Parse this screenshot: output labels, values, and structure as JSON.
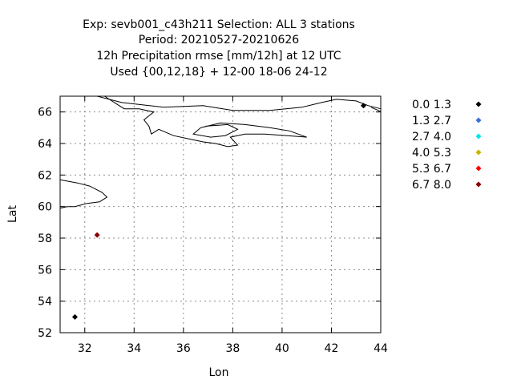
{
  "title_lines": [
    "Exp: sevb001_c43h211   Selection: ALL      3 stations",
    "Period: 20210527-20210626",
    "12h Precipitation rmse [mm/12h] at  12 UTC",
    "Used {00,12,18} + 12-00 18-06 24-12"
  ],
  "chart_data": {
    "type": "scatter",
    "xlabel": "Lon",
    "ylabel": "Lat",
    "xlim": [
      31,
      44
    ],
    "ylim": [
      52,
      67
    ],
    "xticks": [
      32,
      34,
      36,
      38,
      40,
      42,
      44
    ],
    "yticks": [
      52,
      54,
      56,
      58,
      60,
      62,
      64,
      66
    ],
    "grid": true,
    "legend_position": "right",
    "legend": [
      {
        "label": "0.0 1.3",
        "color": "#000000"
      },
      {
        "label": "1.3 2.7",
        "color": "#3b6fd6"
      },
      {
        "label": "2.7 4.0",
        "color": "#00e5e5"
      },
      {
        "label": "4.0 5.3",
        "color": "#c8b400"
      },
      {
        "label": "5.3 6.7",
        "color": "#ff0000"
      },
      {
        "label": "6.7 8.0",
        "color": "#8b0000"
      }
    ],
    "points": [
      {
        "lon": 31.6,
        "lat": 53.0,
        "class": 0
      },
      {
        "lon": 32.5,
        "lat": 58.2,
        "class": 5
      },
      {
        "lon": 43.3,
        "lat": 66.4,
        "class": 0
      }
    ],
    "coastlines": [
      [
        [
          32.5,
          67.0
        ],
        [
          33.5,
          66.6
        ],
        [
          35.2,
          66.3
        ],
        [
          36.8,
          66.4
        ],
        [
          38.0,
          66.1
        ],
        [
          39.5,
          66.1
        ],
        [
          40.8,
          66.3
        ],
        [
          41.6,
          66.6
        ],
        [
          42.2,
          66.8
        ],
        [
          43.0,
          66.7
        ],
        [
          43.5,
          66.4
        ],
        [
          44.0,
          66.2
        ]
      ],
      [
        [
          32.8,
          67.0
        ],
        [
          33.2,
          66.6
        ],
        [
          33.6,
          66.2
        ],
        [
          34.2,
          66.2
        ],
        [
          34.8,
          66.0
        ],
        [
          34.4,
          65.5
        ],
        [
          34.6,
          65.1
        ],
        [
          34.7,
          64.6
        ],
        [
          35.0,
          64.9
        ],
        [
          35.6,
          64.5
        ],
        [
          36.2,
          64.3
        ],
        [
          36.8,
          64.1
        ],
        [
          37.3,
          64.0
        ],
        [
          37.8,
          63.8
        ],
        [
          38.2,
          63.9
        ],
        [
          37.9,
          64.4
        ],
        [
          38.5,
          64.6
        ],
        [
          39.3,
          64.6
        ],
        [
          40.2,
          64.5
        ],
        [
          41.0,
          64.4
        ],
        [
          40.3,
          64.8
        ],
        [
          39.5,
          65.0
        ],
        [
          38.5,
          65.2
        ],
        [
          37.5,
          65.3
        ],
        [
          36.7,
          65.0
        ],
        [
          36.4,
          64.6
        ],
        [
          37.1,
          64.4
        ],
        [
          37.7,
          64.5
        ],
        [
          38.2,
          64.9
        ],
        [
          37.8,
          65.2
        ],
        [
          36.9,
          65.1
        ]
      ],
      [
        [
          31.0,
          61.7
        ],
        [
          31.7,
          61.5
        ],
        [
          32.2,
          61.3
        ],
        [
          32.7,
          60.9
        ],
        [
          32.9,
          60.6
        ],
        [
          32.6,
          60.3
        ],
        [
          32.1,
          60.2
        ],
        [
          31.6,
          60.0
        ],
        [
          31.3,
          60.0
        ],
        [
          31.0,
          59.9
        ]
      ],
      [
        [
          43.6,
          66.3
        ],
        [
          43.9,
          66.1
        ],
        [
          44.0,
          66.0
        ]
      ]
    ]
  }
}
